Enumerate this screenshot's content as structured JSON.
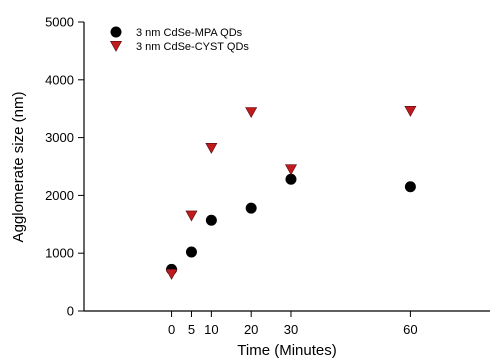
{
  "chart_data": {
    "type": "scatter",
    "xlabel": "Time (Minutes)",
    "ylabel": "Agglomerate size (nm)",
    "xlim": [
      -22,
      80
    ],
    "ylim": [
      0,
      5000
    ],
    "x_ticks": [
      0,
      5,
      10,
      20,
      30,
      60
    ],
    "y_ticks": [
      0,
      1000,
      2000,
      3000,
      4000,
      5000
    ],
    "grid": false,
    "legend_position": "top-left",
    "series": [
      {
        "name": "3 nm CdSe-MPA QDs",
        "marker": "circle",
        "color": "#000000",
        "x": [
          0,
          5,
          10,
          20,
          30,
          60
        ],
        "y": [
          720,
          1020,
          1570,
          1780,
          2280,
          2150
        ]
      },
      {
        "name": "3 nm CdSe-CYST QDs",
        "marker": "triangle-down",
        "color": "#c0191e",
        "x": [
          0,
          5,
          10,
          20,
          30,
          60
        ],
        "y": [
          640,
          1650,
          2820,
          3440,
          2450,
          3460
        ]
      }
    ]
  }
}
